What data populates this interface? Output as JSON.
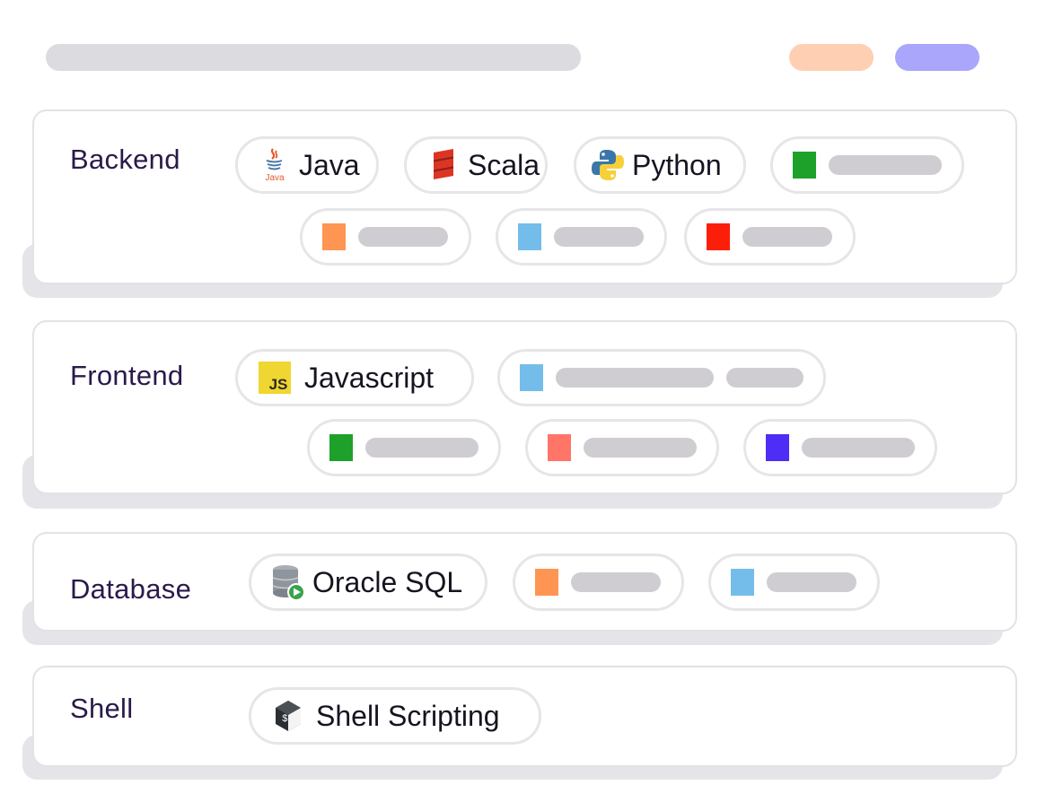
{
  "categories": {
    "backend": {
      "label": "Backend"
    },
    "frontend": {
      "label": "Frontend"
    },
    "database": {
      "label": "Database"
    },
    "shell": {
      "label": "Shell"
    }
  },
  "technologies": {
    "java": {
      "label": "Java",
      "icon": "java-icon",
      "icon_text": "Java"
    },
    "scala": {
      "label": "Scala",
      "icon": "scala-icon"
    },
    "python": {
      "label": "Python",
      "icon": "python-icon"
    },
    "javascript": {
      "label": "Javascript",
      "icon": "js-icon",
      "icon_text": "JS"
    },
    "oracle": {
      "label": "Oracle SQL",
      "icon": "database-icon"
    },
    "shell": {
      "label": "Shell Scripting",
      "icon": "terminal-icon",
      "icon_text": "$"
    }
  },
  "placeholder_colors": {
    "green": "#1ea12b",
    "orange": "#ff9552",
    "blue": "#74bdeb",
    "red": "#fb1f0a",
    "salmon": "#ff7568",
    "violet": "#4e2ef7"
  }
}
